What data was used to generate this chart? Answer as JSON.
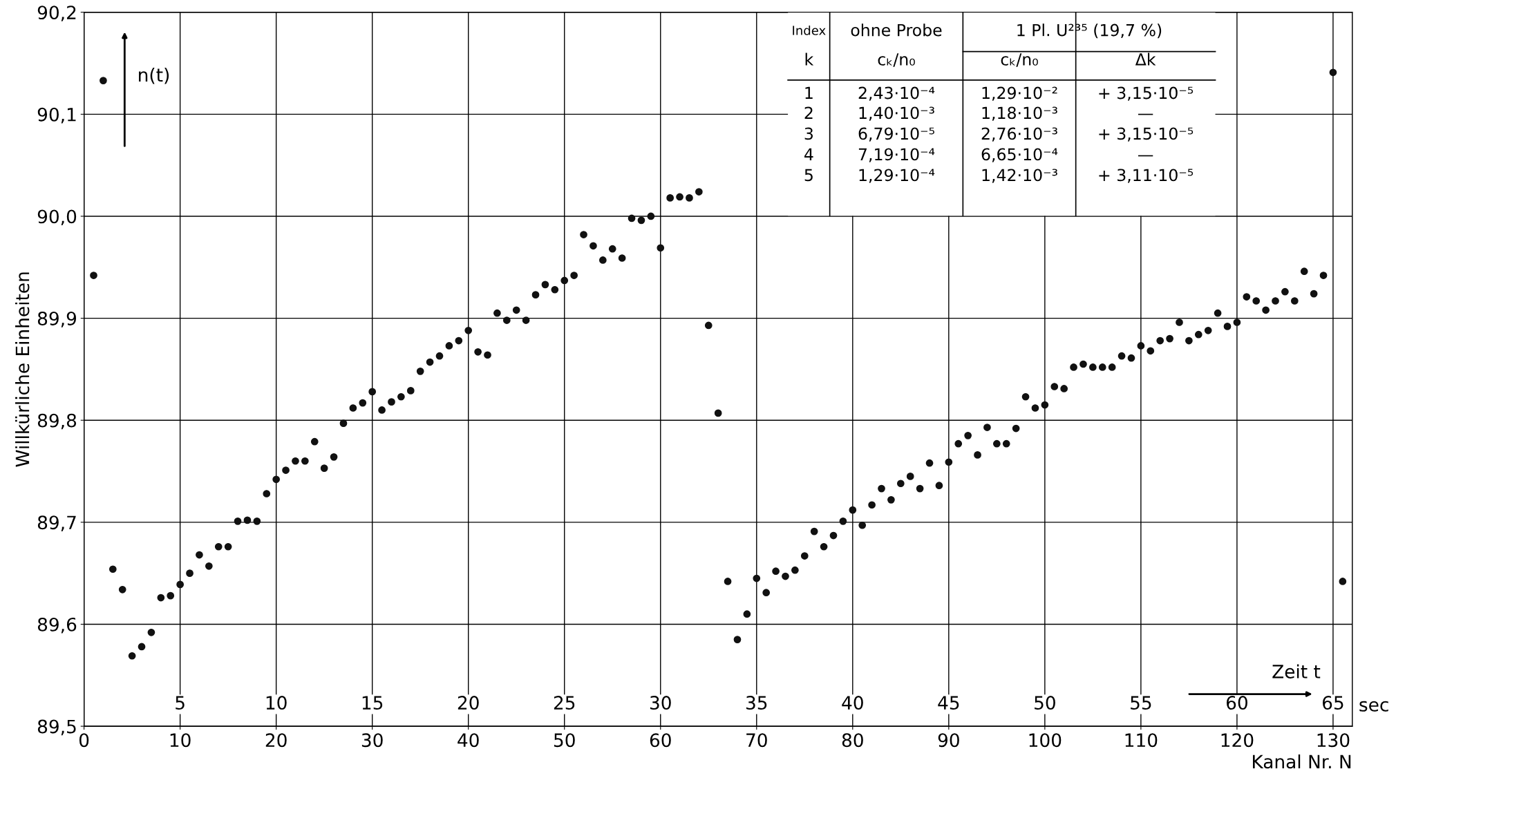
{
  "chart_data": {
    "type": "scatter",
    "x": [
      1,
      2,
      3,
      4,
      5,
      6,
      7,
      8,
      9,
      10,
      11,
      12,
      13,
      14,
      15,
      16,
      17,
      18,
      19,
      20,
      21,
      22,
      23,
      24,
      25,
      26,
      27,
      28,
      29,
      30,
      31,
      32,
      33,
      34,
      35,
      36,
      37,
      38,
      39,
      40,
      41,
      42,
      43,
      44,
      45,
      46,
      47,
      48,
      49,
      50,
      51,
      52,
      53,
      54,
      55,
      56,
      57,
      58,
      59,
      60,
      61,
      62,
      63,
      64,
      65,
      66,
      67,
      68,
      69,
      70,
      71,
      72,
      73,
      74,
      75,
      76,
      77,
      78,
      79,
      80,
      81,
      82,
      83,
      84,
      85,
      86,
      87,
      88,
      89,
      90,
      91,
      92,
      93,
      94,
      95,
      96,
      97,
      98,
      99,
      100,
      101,
      102,
      103,
      104,
      105,
      106,
      107,
      108,
      109,
      110,
      111,
      112,
      113,
      114,
      115,
      116,
      117,
      118,
      119,
      120,
      121,
      122,
      123,
      124,
      125,
      126,
      127,
      128,
      129,
      130,
      131
    ],
    "series": [
      {
        "color": "#111111",
        "values": [
          89.942,
          90.133,
          89.654,
          89.634,
          89.569,
          89.578,
          89.592,
          89.626,
          89.628,
          89.639,
          89.65,
          89.668,
          89.657,
          89.676,
          89.676,
          89.701,
          89.702,
          89.701,
          89.728,
          89.742,
          89.751,
          89.76,
          89.76,
          89.779,
          89.753,
          89.764,
          89.797,
          89.812,
          89.817,
          89.828,
          89.81,
          89.818,
          89.823,
          89.829,
          89.848,
          89.857,
          89.863,
          89.873,
          89.878,
          89.888,
          89.867,
          89.864,
          89.905,
          89.898,
          89.908,
          89.898,
          89.923,
          89.933,
          89.928,
          89.937,
          89.942,
          89.982,
          89.971,
          89.957,
          89.968,
          89.959,
          89.998,
          89.996,
          90.0,
          89.969,
          90.018,
          90.019,
          90.018,
          90.024,
          89.893,
          89.807,
          89.642,
          89.585,
          89.61,
          89.645,
          89.631,
          89.652,
          89.647,
          89.653,
          89.667,
          89.691,
          89.676,
          89.687,
          89.701,
          89.712,
          89.697,
          89.717,
          89.733,
          89.722,
          89.738,
          89.745,
          89.733,
          89.758,
          89.736,
          89.759,
          89.777,
          89.785,
          89.766,
          89.793,
          89.777,
          89.777,
          89.792,
          89.823,
          89.812,
          89.815,
          89.833,
          89.831,
          89.852,
          89.855,
          89.852,
          89.852,
          89.852,
          89.863,
          89.861,
          89.873,
          89.868,
          89.878,
          89.88,
          89.896,
          89.878,
          89.884,
          89.888,
          89.905,
          89.892,
          89.896,
          89.921,
          89.917,
          89.908,
          89.917,
          89.926,
          89.917,
          89.946,
          89.924,
          89.942,
          90.141,
          89.642
        ]
      }
    ],
    "xlabel": "Kanal Nr. N",
    "ylabel": "Willkürliche Einheiten",
    "x2label": "Zeit t",
    "xlim": [
      0,
      132
    ],
    "xticks": [
      0,
      10,
      20,
      30,
      40,
      50,
      60,
      70,
      80,
      90,
      100,
      110,
      120,
      130
    ],
    "x2lim": [
      0,
      66
    ],
    "x2ticks": [
      5,
      10,
      15,
      20,
      25,
      30,
      35,
      40,
      45,
      50,
      55,
      60,
      65
    ],
    "ylim": [
      89.5,
      90.2
    ],
    "yticks": [
      {
        "value": 89.5,
        "label": "89,5"
      },
      {
        "value": 89.6,
        "label": "89,6"
      },
      {
        "value": 89.7,
        "label": "89,7"
      },
      {
        "value": 89.8,
        "label": "89,8"
      },
      {
        "value": 89.9,
        "label": "89,9"
      },
      {
        "value": 90.0,
        "label": "90,0"
      },
      {
        "value": 90.1,
        "label": "90,1"
      },
      {
        "value": 90.2,
        "label": "90,2"
      }
    ],
    "grid": true,
    "marker": "circle",
    "annotations": [
      "Index",
      "ohne Probe",
      "1 Pl. U²³⁵ (19,7 %)",
      "k",
      "cₖ/n₀",
      "cₖ/n₀",
      "Δk",
      "1",
      "2,43·10⁻⁴",
      "1,29·10⁻²",
      "+ 3,15·10⁻⁵",
      "2",
      "1,40·10⁻³",
      "1,18·10⁻³",
      "—",
      "3",
      "6,79·10⁻⁵",
      "2,76·10⁻³",
      "+ 3,15·10⁻⁵",
      "4",
      "7,19·10⁻⁴",
      "6,65·10⁻⁴",
      "—",
      "5",
      "1,29·10⁻⁴",
      "1,42·10⁻³",
      "+ 3,11·10⁻⁵",
      "n(t)",
      "sec"
    ]
  }
}
